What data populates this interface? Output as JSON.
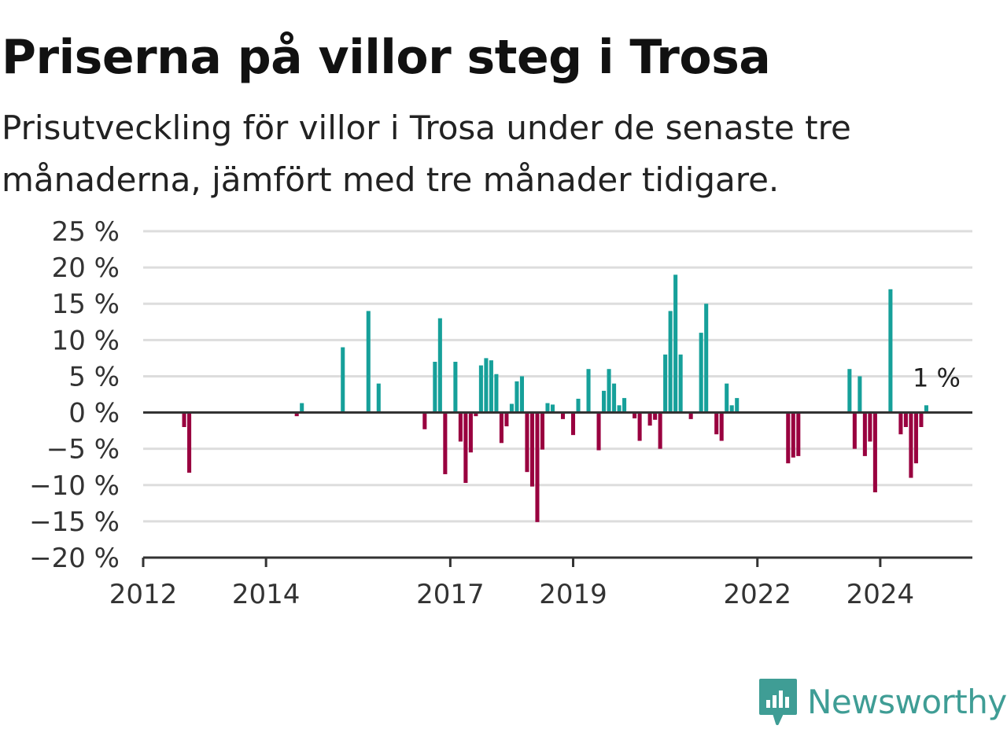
{
  "header": {
    "title": "Priserna på villor steg i Trosa",
    "subtitle": "Prisutveckling för villor i Trosa under de senaste tre månaderna, jämfört med tre månader tidigare."
  },
  "brand": {
    "name": "Newsworthy"
  },
  "colors": {
    "positive": "#16a09a",
    "negative": "#99003f",
    "grid": "#dddddd",
    "zero_line": "#333333",
    "brand": "#3f9d95"
  },
  "chart_data": {
    "type": "bar",
    "x_type": "date",
    "y_unit": "%",
    "ylim": [
      -20,
      25
    ],
    "yticks": [
      25,
      20,
      15,
      10,
      5,
      0,
      -5,
      -10,
      -15,
      -20
    ],
    "ytick_labels": [
      "25 %",
      "20 %",
      "15 %",
      "10 %",
      "5 %",
      "0 %",
      "−5 %",
      "−10 %",
      "−15 %",
      "−20 %"
    ],
    "xlim": [
      "2012-01",
      "2025-07"
    ],
    "xticks": [
      "2012-01",
      "2014-01",
      "2017-01",
      "2019-01",
      "2022-01",
      "2024-01"
    ],
    "xtick_labels": [
      "2012",
      "2014",
      "2017",
      "2019",
      "2022",
      "2024"
    ],
    "grid": true,
    "annotation": {
      "text": "1 %",
      "date": "2024-12"
    },
    "points": [
      {
        "date": "2012-09",
        "value": -2
      },
      {
        "date": "2012-10",
        "value": -8.3
      },
      {
        "date": "2014-07",
        "value": -0.5
      },
      {
        "date": "2014-08",
        "value": 1.3
      },
      {
        "date": "2015-04",
        "value": 9
      },
      {
        "date": "2015-09",
        "value": 14
      },
      {
        "date": "2015-11",
        "value": 4
      },
      {
        "date": "2016-08",
        "value": -2.3
      },
      {
        "date": "2016-10",
        "value": 7
      },
      {
        "date": "2016-11",
        "value": 13
      },
      {
        "date": "2016-12",
        "value": -8.5
      },
      {
        "date": "2017-02",
        "value": 7
      },
      {
        "date": "2017-03",
        "value": -4
      },
      {
        "date": "2017-04",
        "value": -9.7
      },
      {
        "date": "2017-05",
        "value": -5.5
      },
      {
        "date": "2017-06",
        "value": -0.5
      },
      {
        "date": "2017-07",
        "value": 6.5
      },
      {
        "date": "2017-08",
        "value": 7.5
      },
      {
        "date": "2017-09",
        "value": 7.2
      },
      {
        "date": "2017-10",
        "value": 5.3
      },
      {
        "date": "2017-11",
        "value": -4.2
      },
      {
        "date": "2017-12",
        "value": -1.9
      },
      {
        "date": "2018-01",
        "value": 1.2
      },
      {
        "date": "2018-02",
        "value": 4.3
      },
      {
        "date": "2018-03",
        "value": 5
      },
      {
        "date": "2018-04",
        "value": -8.2
      },
      {
        "date": "2018-05",
        "value": -10.2
      },
      {
        "date": "2018-06",
        "value": -15.1
      },
      {
        "date": "2018-07",
        "value": -5.1
      },
      {
        "date": "2018-08",
        "value": 1.3
      },
      {
        "date": "2018-09",
        "value": 1.1
      },
      {
        "date": "2018-11",
        "value": -0.9
      },
      {
        "date": "2019-01",
        "value": -3.1
      },
      {
        "date": "2019-02",
        "value": 1.9
      },
      {
        "date": "2019-04",
        "value": 6
      },
      {
        "date": "2019-06",
        "value": -5.2
      },
      {
        "date": "2019-07",
        "value": 3
      },
      {
        "date": "2019-08",
        "value": 6
      },
      {
        "date": "2019-09",
        "value": 4
      },
      {
        "date": "2019-10",
        "value": 1
      },
      {
        "date": "2019-11",
        "value": 2
      },
      {
        "date": "2020-01",
        "value": -0.8
      },
      {
        "date": "2020-02",
        "value": -3.9
      },
      {
        "date": "2020-04",
        "value": -1.8
      },
      {
        "date": "2020-05",
        "value": -1
      },
      {
        "date": "2020-06",
        "value": -5
      },
      {
        "date": "2020-07",
        "value": 8
      },
      {
        "date": "2020-08",
        "value": 14
      },
      {
        "date": "2020-09",
        "value": 19
      },
      {
        "date": "2020-10",
        "value": 8
      },
      {
        "date": "2020-12",
        "value": -0.9
      },
      {
        "date": "2021-02",
        "value": 11
      },
      {
        "date": "2021-03",
        "value": 15
      },
      {
        "date": "2021-05",
        "value": -3
      },
      {
        "date": "2021-06",
        "value": -3.9
      },
      {
        "date": "2021-07",
        "value": 4
      },
      {
        "date": "2021-08",
        "value": 1
      },
      {
        "date": "2021-09",
        "value": 2
      },
      {
        "date": "2022-07",
        "value": -7
      },
      {
        "date": "2022-08",
        "value": -6.2
      },
      {
        "date": "2022-09",
        "value": -6
      },
      {
        "date": "2023-07",
        "value": 6
      },
      {
        "date": "2023-08",
        "value": -5
      },
      {
        "date": "2023-09",
        "value": 5
      },
      {
        "date": "2023-10",
        "value": -6
      },
      {
        "date": "2023-11",
        "value": -4
      },
      {
        "date": "2023-12",
        "value": -11
      },
      {
        "date": "2024-03",
        "value": 17
      },
      {
        "date": "2024-05",
        "value": -3
      },
      {
        "date": "2024-06",
        "value": -2
      },
      {
        "date": "2024-07",
        "value": -9
      },
      {
        "date": "2024-08",
        "value": -7
      },
      {
        "date": "2024-09",
        "value": -2
      },
      {
        "date": "2024-10",
        "value": 1
      }
    ]
  }
}
